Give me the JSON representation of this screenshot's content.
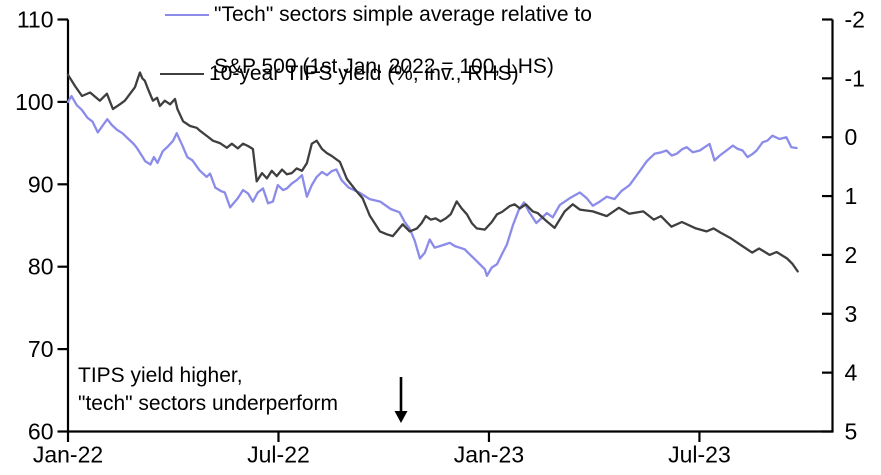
{
  "chart_data": {
    "type": "line",
    "title": "",
    "grid": false,
    "background": "#ffffff",
    "axis_color": "#000000",
    "x_axis": {
      "unit": "months since 1 Jan 2022",
      "range": [
        0,
        21.8
      ],
      "ticks": [
        {
          "m": 0,
          "label": "Jan-22"
        },
        {
          "m": 6,
          "label": "Jul-22"
        },
        {
          "m": 12,
          "label": "Jan-23"
        },
        {
          "m": 18,
          "label": "Jul-23"
        }
      ]
    },
    "y_left": {
      "range": [
        60,
        110
      ],
      "ticks": [
        110,
        100,
        90,
        80,
        70,
        60
      ],
      "inverted": false
    },
    "y_right": {
      "range": [
        -2,
        5
      ],
      "ticks": [
        -2,
        -1,
        0,
        1,
        2,
        3,
        4,
        5
      ],
      "inverted": true
    },
    "legend_position": "top",
    "legend": [
      {
        "line1": "\"Tech\" sectors simple average relative to",
        "line2": "S&P 500 (1st Jan. 2022 = 100, LHS)",
        "color": "#8b8bea"
      },
      {
        "line1": "10-year TIPS yield (%, inv., RHS)",
        "line2": "",
        "color": "#3f3f3f"
      }
    ],
    "annotation": {
      "line1": "TIPS yield higher,",
      "line2": "\"tech\" sectors underperform",
      "arrow": "down"
    },
    "series": [
      {
        "id": "tech-relative",
        "label": "\"Tech\" sectors simple average relative to S&P 500 (1st Jan. 2022 = 100, LHS)",
        "axis": "left",
        "color": "#8b8bea",
        "points": [
          [
            0.0,
            100.0
          ],
          [
            0.1,
            100.7
          ],
          [
            0.25,
            99.6
          ],
          [
            0.4,
            99.0
          ],
          [
            0.55,
            98.1
          ],
          [
            0.7,
            97.6
          ],
          [
            0.85,
            96.3
          ],
          [
            1.0,
            97.2
          ],
          [
            1.12,
            97.9
          ],
          [
            1.25,
            97.2
          ],
          [
            1.4,
            96.6
          ],
          [
            1.55,
            96.2
          ],
          [
            1.7,
            95.6
          ],
          [
            1.85,
            95.0
          ],
          [
            1.95,
            94.5
          ],
          [
            2.1,
            93.5
          ],
          [
            2.2,
            92.8
          ],
          [
            2.35,
            92.4
          ],
          [
            2.45,
            93.3
          ],
          [
            2.55,
            92.6
          ],
          [
            2.7,
            94.0
          ],
          [
            2.85,
            94.6
          ],
          [
            3.0,
            95.3
          ],
          [
            3.1,
            96.2
          ],
          [
            3.25,
            94.8
          ],
          [
            3.4,
            93.3
          ],
          [
            3.55,
            92.9
          ],
          [
            3.75,
            91.7
          ],
          [
            3.95,
            90.9
          ],
          [
            4.05,
            91.3
          ],
          [
            4.2,
            89.6
          ],
          [
            4.35,
            89.2
          ],
          [
            4.47,
            89.0
          ],
          [
            4.62,
            87.2
          ],
          [
            4.84,
            88.3
          ],
          [
            4.99,
            89.3
          ],
          [
            5.13,
            88.9
          ],
          [
            5.27,
            87.9
          ],
          [
            5.41,
            89.0
          ],
          [
            5.56,
            89.5
          ],
          [
            5.7,
            87.7
          ],
          [
            5.84,
            87.9
          ],
          [
            5.98,
            89.9
          ],
          [
            6.13,
            89.3
          ],
          [
            6.24,
            89.5
          ],
          [
            6.38,
            90.1
          ],
          [
            6.52,
            90.5
          ],
          [
            6.67,
            91.1
          ],
          [
            6.81,
            88.5
          ],
          [
            6.95,
            89.9
          ],
          [
            7.09,
            90.9
          ],
          [
            7.24,
            91.5
          ],
          [
            7.38,
            91.1
          ],
          [
            7.52,
            91.6
          ],
          [
            7.65,
            91.8
          ],
          [
            7.8,
            90.5
          ],
          [
            8.0,
            89.6
          ],
          [
            8.3,
            89.0
          ],
          [
            8.6,
            88.2
          ],
          [
            8.9,
            87.9
          ],
          [
            9.2,
            87.0
          ],
          [
            9.45,
            86.6
          ],
          [
            9.6,
            85.4
          ],
          [
            9.74,
            84.6
          ],
          [
            9.88,
            83.2
          ],
          [
            10.03,
            81.0
          ],
          [
            10.17,
            81.7
          ],
          [
            10.31,
            83.3
          ],
          [
            10.45,
            82.3
          ],
          [
            10.6,
            82.5
          ],
          [
            10.74,
            82.7
          ],
          [
            10.88,
            82.9
          ],
          [
            11.03,
            82.5
          ],
          [
            11.17,
            82.3
          ],
          [
            11.31,
            82.1
          ],
          [
            11.45,
            81.5
          ],
          [
            11.6,
            80.9
          ],
          [
            11.74,
            80.3
          ],
          [
            11.88,
            79.7
          ],
          [
            11.94,
            78.9
          ],
          [
            12.08,
            79.9
          ],
          [
            12.23,
            80.3
          ],
          [
            12.37,
            81.5
          ],
          [
            12.51,
            82.7
          ],
          [
            12.68,
            85.0
          ],
          [
            12.85,
            86.9
          ],
          [
            13.0,
            87.8
          ],
          [
            13.15,
            86.6
          ],
          [
            13.35,
            85.3
          ],
          [
            13.5,
            85.9
          ],
          [
            13.65,
            86.5
          ],
          [
            13.82,
            86.0
          ],
          [
            14.02,
            87.5
          ],
          [
            14.3,
            88.3
          ],
          [
            14.59,
            89.0
          ],
          [
            14.79,
            88.3
          ],
          [
            14.96,
            87.4
          ],
          [
            15.16,
            87.9
          ],
          [
            15.36,
            88.5
          ],
          [
            15.58,
            88.2
          ],
          [
            15.78,
            89.2
          ],
          [
            16.01,
            89.9
          ],
          [
            16.3,
            91.6
          ],
          [
            16.5,
            92.8
          ],
          [
            16.72,
            93.7
          ],
          [
            16.92,
            93.9
          ],
          [
            17.06,
            94.1
          ],
          [
            17.21,
            93.5
          ],
          [
            17.35,
            93.7
          ],
          [
            17.52,
            94.3
          ],
          [
            17.64,
            94.5
          ],
          [
            17.81,
            93.9
          ],
          [
            18.01,
            94.1
          ],
          [
            18.15,
            94.5
          ],
          [
            18.29,
            94.9
          ],
          [
            18.43,
            92.9
          ],
          [
            18.58,
            93.5
          ],
          [
            18.77,
            94.1
          ],
          [
            18.95,
            94.7
          ],
          [
            19.09,
            94.3
          ],
          [
            19.23,
            94.1
          ],
          [
            19.37,
            93.3
          ],
          [
            19.52,
            93.7
          ],
          [
            19.63,
            94.1
          ],
          [
            19.8,
            95.1
          ],
          [
            19.94,
            95.3
          ],
          [
            20.08,
            95.9
          ],
          [
            20.28,
            95.5
          ],
          [
            20.48,
            95.7
          ],
          [
            20.62,
            94.5
          ],
          [
            20.77,
            94.4
          ]
        ]
      },
      {
        "id": "tips-yield",
        "label": "10-year TIPS yield (%, inv., RHS)",
        "axis": "right",
        "color": "#3f3f3f",
        "points": [
          [
            0.0,
            -1.06
          ],
          [
            0.2,
            -0.87
          ],
          [
            0.4,
            -0.7
          ],
          [
            0.63,
            -0.76
          ],
          [
            0.91,
            -0.62
          ],
          [
            1.11,
            -0.74
          ],
          [
            1.28,
            -0.48
          ],
          [
            1.48,
            -0.56
          ],
          [
            1.62,
            -0.62
          ],
          [
            1.77,
            -0.74
          ],
          [
            1.91,
            -0.85
          ],
          [
            1.98,
            -0.98
          ],
          [
            2.05,
            -1.1
          ],
          [
            2.12,
            -1.0
          ],
          [
            2.19,
            -0.96
          ],
          [
            2.28,
            -0.82
          ],
          [
            2.42,
            -0.62
          ],
          [
            2.54,
            -0.67
          ],
          [
            2.62,
            -0.53
          ],
          [
            2.76,
            -0.62
          ],
          [
            2.91,
            -0.56
          ],
          [
            3.05,
            -0.65
          ],
          [
            3.12,
            -0.48
          ],
          [
            3.28,
            -0.27
          ],
          [
            3.48,
            -0.19
          ],
          [
            3.67,
            -0.16
          ],
          [
            3.76,
            -0.11
          ],
          [
            3.96,
            -0.02
          ],
          [
            4.13,
            0.06
          ],
          [
            4.33,
            0.1
          ],
          [
            4.53,
            0.18
          ],
          [
            4.67,
            0.11
          ],
          [
            4.84,
            0.19
          ],
          [
            4.99,
            0.11
          ],
          [
            5.13,
            0.15
          ],
          [
            5.27,
            0.2
          ],
          [
            5.38,
            0.75
          ],
          [
            5.53,
            0.61
          ],
          [
            5.67,
            0.7
          ],
          [
            5.81,
            0.57
          ],
          [
            5.95,
            0.66
          ],
          [
            6.1,
            0.55
          ],
          [
            6.24,
            0.63
          ],
          [
            6.38,
            0.61
          ],
          [
            6.52,
            0.53
          ],
          [
            6.67,
            0.57
          ],
          [
            6.81,
            0.44
          ],
          [
            6.95,
            0.11
          ],
          [
            7.09,
            0.06
          ],
          [
            7.24,
            0.2
          ],
          [
            7.38,
            0.27
          ],
          [
            7.52,
            0.32
          ],
          [
            7.75,
            0.42
          ],
          [
            7.95,
            0.71
          ],
          [
            8.2,
            0.9
          ],
          [
            8.4,
            1.04
          ],
          [
            8.6,
            1.33
          ],
          [
            8.89,
            1.6
          ],
          [
            9.09,
            1.65
          ],
          [
            9.26,
            1.68
          ],
          [
            9.54,
            1.48
          ],
          [
            9.74,
            1.6
          ],
          [
            9.95,
            1.55
          ],
          [
            10.08,
            1.46
          ],
          [
            10.2,
            1.34
          ],
          [
            10.34,
            1.4
          ],
          [
            10.48,
            1.38
          ],
          [
            10.62,
            1.43
          ],
          [
            10.77,
            1.38
          ],
          [
            10.91,
            1.31
          ],
          [
            11.08,
            1.09
          ],
          [
            11.22,
            1.21
          ],
          [
            11.37,
            1.31
          ],
          [
            11.51,
            1.46
          ],
          [
            11.65,
            1.55
          ],
          [
            11.88,
            1.57
          ],
          [
            12.08,
            1.44
          ],
          [
            12.23,
            1.31
          ],
          [
            12.37,
            1.27
          ],
          [
            12.59,
            1.17
          ],
          [
            12.73,
            1.14
          ],
          [
            12.88,
            1.21
          ],
          [
            13.05,
            1.14
          ],
          [
            13.25,
            1.26
          ],
          [
            13.39,
            1.29
          ],
          [
            13.65,
            1.43
          ],
          [
            13.87,
            1.54
          ],
          [
            14.16,
            1.26
          ],
          [
            14.39,
            1.14
          ],
          [
            14.59,
            1.23
          ],
          [
            14.96,
            1.26
          ],
          [
            15.36,
            1.34
          ],
          [
            15.7,
            1.2
          ],
          [
            16.0,
            1.3
          ],
          [
            16.4,
            1.26
          ],
          [
            16.7,
            1.4
          ],
          [
            16.9,
            1.34
          ],
          [
            17.2,
            1.52
          ],
          [
            17.5,
            1.44
          ],
          [
            17.9,
            1.55
          ],
          [
            18.2,
            1.6
          ],
          [
            18.4,
            1.55
          ],
          [
            18.6,
            1.62
          ],
          [
            18.9,
            1.72
          ],
          [
            19.2,
            1.84
          ],
          [
            19.5,
            1.96
          ],
          [
            19.7,
            1.89
          ],
          [
            20.0,
            2.0
          ],
          [
            20.2,
            1.95
          ],
          [
            20.5,
            2.06
          ],
          [
            20.65,
            2.15
          ],
          [
            20.8,
            2.28
          ]
        ]
      }
    ]
  }
}
